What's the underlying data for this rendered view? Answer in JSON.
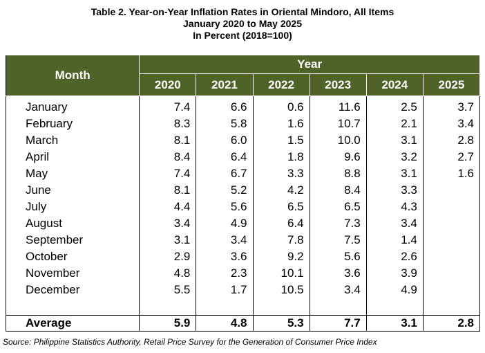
{
  "title": {
    "line1": "Table 2. Year-on-Year Inflation Rates in Oriental Mindoro, All Items",
    "line2": "January 2020 to May 2025",
    "line3": "In Percent (2018=100)"
  },
  "table": {
    "month_header": "Month",
    "year_header": "Year",
    "years": [
      "2020",
      "2021",
      "2022",
      "2023",
      "2024",
      "2025"
    ],
    "rows": [
      {
        "month": "January",
        "values": [
          "7.4",
          "6.6",
          "0.6",
          "11.6",
          "2.5",
          "3.7"
        ]
      },
      {
        "month": "February",
        "values": [
          "8.3",
          "5.8",
          "1.6",
          "10.7",
          "2.1",
          "3.4"
        ]
      },
      {
        "month": "March",
        "values": [
          "8.1",
          "6.0",
          "1.5",
          "10.0",
          "3.1",
          "2.8"
        ]
      },
      {
        "month": "April",
        "values": [
          "8.4",
          "6.4",
          "1.8",
          "9.6",
          "3.2",
          "2.7"
        ]
      },
      {
        "month": "May",
        "values": [
          "7.4",
          "6.7",
          "3.3",
          "8.8",
          "3.1",
          "1.6"
        ]
      },
      {
        "month": "June",
        "values": [
          "8.1",
          "5.2",
          "4.2",
          "8.4",
          "3.3",
          ""
        ]
      },
      {
        "month": "July",
        "values": [
          "4.4",
          "5.6",
          "6.5",
          "6.5",
          "4.3",
          ""
        ]
      },
      {
        "month": "August",
        "values": [
          "3.4",
          "4.9",
          "6.4",
          "7.3",
          "3.4",
          ""
        ]
      },
      {
        "month": "September",
        "values": [
          "3.1",
          "3.4",
          "7.8",
          "7.5",
          "1.4",
          ""
        ]
      },
      {
        "month": "October",
        "values": [
          "2.9",
          "3.6",
          "9.2",
          "5.6",
          "2.6",
          ""
        ]
      },
      {
        "month": "November",
        "values": [
          "4.8",
          "2.3",
          "10.1",
          "3.6",
          "3.9",
          ""
        ]
      },
      {
        "month": "December",
        "values": [
          "5.5",
          "1.7",
          "10.5",
          "3.4",
          "4.9",
          ""
        ]
      }
    ],
    "average": {
      "label": "Average",
      "values": [
        "5.9",
        "4.8",
        "5.3",
        "7.7",
        "3.1",
        "2.8"
      ]
    }
  },
  "source": "Source: Philippine Statistics Authority, Retail Price Survey for the Generation of Consumer Price Index",
  "colors": {
    "header_bg": "#4f6228",
    "header_text": "#ffffff"
  }
}
